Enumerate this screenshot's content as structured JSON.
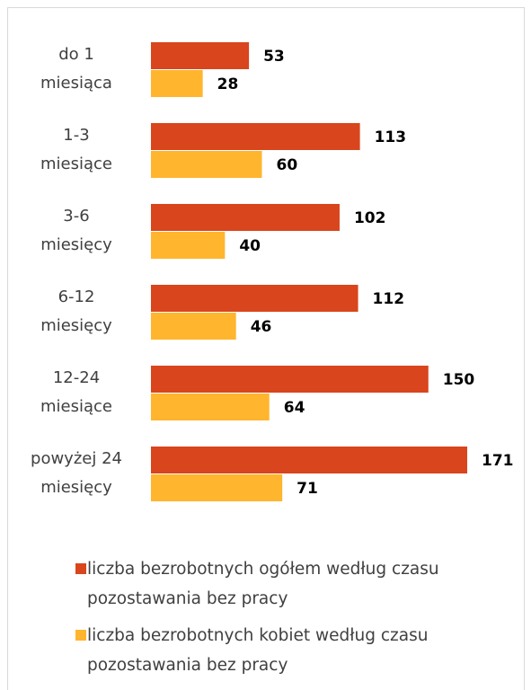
{
  "chart_data": {
    "type": "bar",
    "orientation": "horizontal",
    "categories": [
      "do 1\nmiesiąca",
      "1-3\nmiesiące",
      "3-6\nmiesięcy",
      "6-12\nmiesięcy",
      "12-24\nmiesiące",
      "powyżej 24\nmiesięcy"
    ],
    "series": [
      {
        "name": "liczba bezrobotnych ogółem według czasu pozostawania bez pracy",
        "color": "#D9451C",
        "values": [
          53,
          113,
          102,
          112,
          150,
          171
        ]
      },
      {
        "name": "liczba bezrobotnych kobiet według czasu pozostawania bez pracy",
        "color": "#FFB52E",
        "values": [
          28,
          60,
          40,
          46,
          64,
          71
        ]
      }
    ],
    "legend": "bottom"
  }
}
